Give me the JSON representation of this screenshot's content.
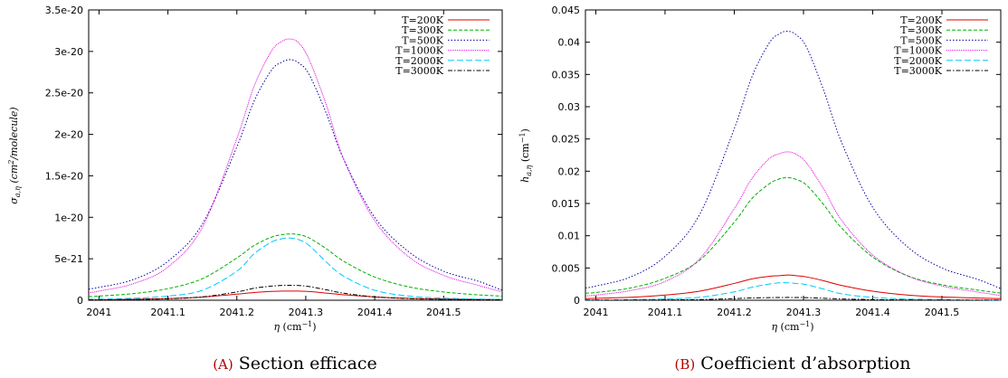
{
  "figures": [
    {
      "caption_letter": "(A)",
      "caption_text": "Section efficace"
    },
    {
      "caption_letter": "(B)",
      "caption_text": "Coefficient d’absorption"
    }
  ],
  "series_styles": [
    {
      "color": "#e00000",
      "dash": ""
    },
    {
      "color": "#00b000",
      "dash": "4,2"
    },
    {
      "color": "#0000a0",
      "dash": "1.5,2"
    },
    {
      "color": "#e000e0",
      "dash": "1,1"
    },
    {
      "color": "#00c8ff",
      "dash": "7,3"
    },
    {
      "color": "#000000",
      "dash": "5,2,1.5,2"
    }
  ],
  "chart_data": [
    {
      "type": "line",
      "xlabel": "η (cm⁻¹)",
      "ylabel": "σa,η (cm²/molecule)",
      "xlim": [
        2040.985,
        2041.585
      ],
      "ylim": [
        0,
        3.5e-20
      ],
      "xticks": [
        2041,
        2041.1,
        2041.2,
        2041.3,
        2041.4,
        2041.5
      ],
      "xtick_labels": [
        "2041",
        "2041.1",
        "2041.2",
        "2041.3",
        "2041.4",
        "2041.5"
      ],
      "yticks": [
        0,
        5e-21,
        1e-20,
        1.5e-20,
        2e-20,
        2.5e-20,
        3e-20,
        3.5e-20
      ],
      "ytick_labels": [
        "0",
        "5e-21",
        "1e-20",
        "1.5e-20",
        "2e-20",
        "2.5e-20",
        "3e-20",
        "3.5e-20"
      ],
      "x": [
        2040.985,
        2041.0,
        2041.05,
        2041.1,
        2041.15,
        2041.2,
        2041.225,
        2041.25,
        2041.265,
        2041.2775,
        2041.29,
        2041.305,
        2041.33,
        2041.355,
        2041.4,
        2041.45,
        2041.5,
        2041.55,
        2041.585
      ],
      "series": [
        {
          "name": "T=200K",
          "values": [
            6e-23,
            7e-23,
            1.1e-22,
            2e-22,
            3.8e-22,
            7.3e-22,
            9.3e-22,
            1.06e-21,
            1.1e-21,
            1.11e-21,
            1.1e-21,
            1.05e-21,
            8.6e-22,
            6.6e-22,
            4e-22,
            2.3e-22,
            1.4e-22,
            9e-23,
            7e-23
          ]
        },
        {
          "name": "T=300K",
          "values": [
            4.4e-22,
            5e-22,
            8e-22,
            1.4e-21,
            2.6e-21,
            5.1e-21,
            6.6e-21,
            7.6e-21,
            7.9e-21,
            8e-21,
            7.9e-21,
            7.5e-21,
            6.2e-21,
            4.7e-21,
            2.8e-21,
            1.6e-21,
            1e-21,
            6.5e-22,
            5e-22
          ]
        },
        {
          "name": "T=500K",
          "values": [
            1.35e-21,
            1.55e-21,
            2.5e-21,
            4.7e-21,
            9.2e-21,
            1.85e-20,
            2.4e-20,
            2.77e-20,
            2.87e-20,
            2.9e-20,
            2.86e-20,
            2.72e-20,
            2.25e-20,
            1.7e-20,
            1e-20,
            5.8e-21,
            3.5e-21,
            2.3e-21,
            1.2e-21
          ]
        },
        {
          "name": "T=1000K",
          "values": [
            9e-22,
            1.1e-21,
            2e-21,
            4e-21,
            8.8e-21,
            1.95e-20,
            2.58e-20,
            3e-20,
            3.12e-20,
            3.15e-20,
            3.1e-20,
            2.9e-20,
            2.35e-20,
            1.7e-20,
            9.6e-21,
            5.2e-21,
            3e-21,
            1.8e-21,
            1e-21
          ]
        },
        {
          "name": "T=2000K",
          "values": [
            1e-22,
            1.2e-22,
            2.4e-22,
            5e-22,
            1.2e-21,
            3.5e-21,
            5.6e-21,
            7e-21,
            7.4e-21,
            7.5e-21,
            7.3e-21,
            6.6e-21,
            4.6e-21,
            2.9e-21,
            1.2e-21,
            5e-22,
            2.5e-22,
            1.4e-22,
            1e-22
          ]
        },
        {
          "name": "T=3000K",
          "values": [
            5e-23,
            6e-23,
            1e-22,
            1.8e-22,
            4e-22,
            1e-21,
            1.45e-21,
            1.7e-21,
            1.78e-21,
            1.8e-21,
            1.77e-21,
            1.65e-21,
            1.25e-21,
            8.5e-22,
            4e-22,
            2e-22,
            1.1e-22,
            7e-23,
            5e-23
          ]
        }
      ],
      "legend": "top-right",
      "grid": false
    },
    {
      "type": "line",
      "xlabel": "η (cm⁻¹)",
      "ylabel": "ha,η (cm⁻¹)",
      "xlim": [
        2040.985,
        2041.585
      ],
      "ylim": [
        0,
        0.045
      ],
      "xticks": [
        2041,
        2041.1,
        2041.2,
        2041.3,
        2041.4,
        2041.5
      ],
      "xtick_labels": [
        "2041",
        "2041.1",
        "2041.2",
        "2041.3",
        "2041.4",
        "2041.5"
      ],
      "yticks": [
        0,
        0.005,
        0.01,
        0.015,
        0.02,
        0.025,
        0.03,
        0.035,
        0.04,
        0.045
      ],
      "ytick_labels": [
        "0",
        "0.005",
        "0.01",
        "0.015",
        "0.02",
        "0.025",
        "0.03",
        "0.035",
        "0.04",
        "0.045"
      ],
      "x": [
        2040.985,
        2041.0,
        2041.05,
        2041.1,
        2041.15,
        2041.2,
        2041.225,
        2041.25,
        2041.265,
        2041.2775,
        2041.29,
        2041.305,
        2041.33,
        2041.355,
        2041.4,
        2041.45,
        2041.5,
        2041.55,
        2041.585
      ],
      "series": [
        {
          "name": "T=200K",
          "values": [
            0.00025,
            0.0003,
            0.00045,
            0.0008,
            0.0014,
            0.0026,
            0.0033,
            0.0037,
            0.0038,
            0.0039,
            0.0038,
            0.0036,
            0.003,
            0.0023,
            0.0014,
            0.0008,
            0.0005,
            0.00035,
            0.00025
          ]
        },
        {
          "name": "T=300K",
          "values": [
            0.0011,
            0.0012,
            0.0019,
            0.0034,
            0.0062,
            0.0121,
            0.0157,
            0.018,
            0.0188,
            0.019,
            0.0187,
            0.0178,
            0.0147,
            0.0112,
            0.0067,
            0.0038,
            0.0024,
            0.0016,
            0.0011
          ]
        },
        {
          "name": "T=500K",
          "values": [
            0.0019,
            0.0022,
            0.0036,
            0.0068,
            0.0133,
            0.0266,
            0.0345,
            0.0398,
            0.0413,
            0.0417,
            0.0411,
            0.0391,
            0.0323,
            0.0245,
            0.0144,
            0.0083,
            0.005,
            0.0033,
            0.0018
          ]
        },
        {
          "name": "T=1000K",
          "values": [
            0.00066,
            0.0008,
            0.0015,
            0.0029,
            0.0064,
            0.0142,
            0.0188,
            0.0219,
            0.0227,
            0.023,
            0.0226,
            0.0212,
            0.0171,
            0.0124,
            0.007,
            0.0038,
            0.0022,
            0.0013,
            0.00073
          ]
        },
        {
          "name": "T=2000K",
          "values": [
            4e-05,
            5e-05,
            9e-05,
            0.00019,
            0.00045,
            0.0013,
            0.002,
            0.0025,
            0.0027,
            0.0027,
            0.0026,
            0.0024,
            0.0017,
            0.001,
            0.00043,
            0.00018,
            9e-05,
            5e-05,
            4e-05
          ]
        },
        {
          "name": "T=3000K",
          "values": [
            2e-05,
            2e-05,
            3e-05,
            5e-05,
            0.0001,
            0.00025,
            0.00035,
            0.0004,
            0.00042,
            0.00043,
            0.00042,
            0.0004,
            0.0003,
            0.0002,
            0.0001,
            5e-05,
            3e-05,
            2e-05,
            2e-05
          ]
        }
      ],
      "legend": "top-right",
      "grid": false
    }
  ]
}
